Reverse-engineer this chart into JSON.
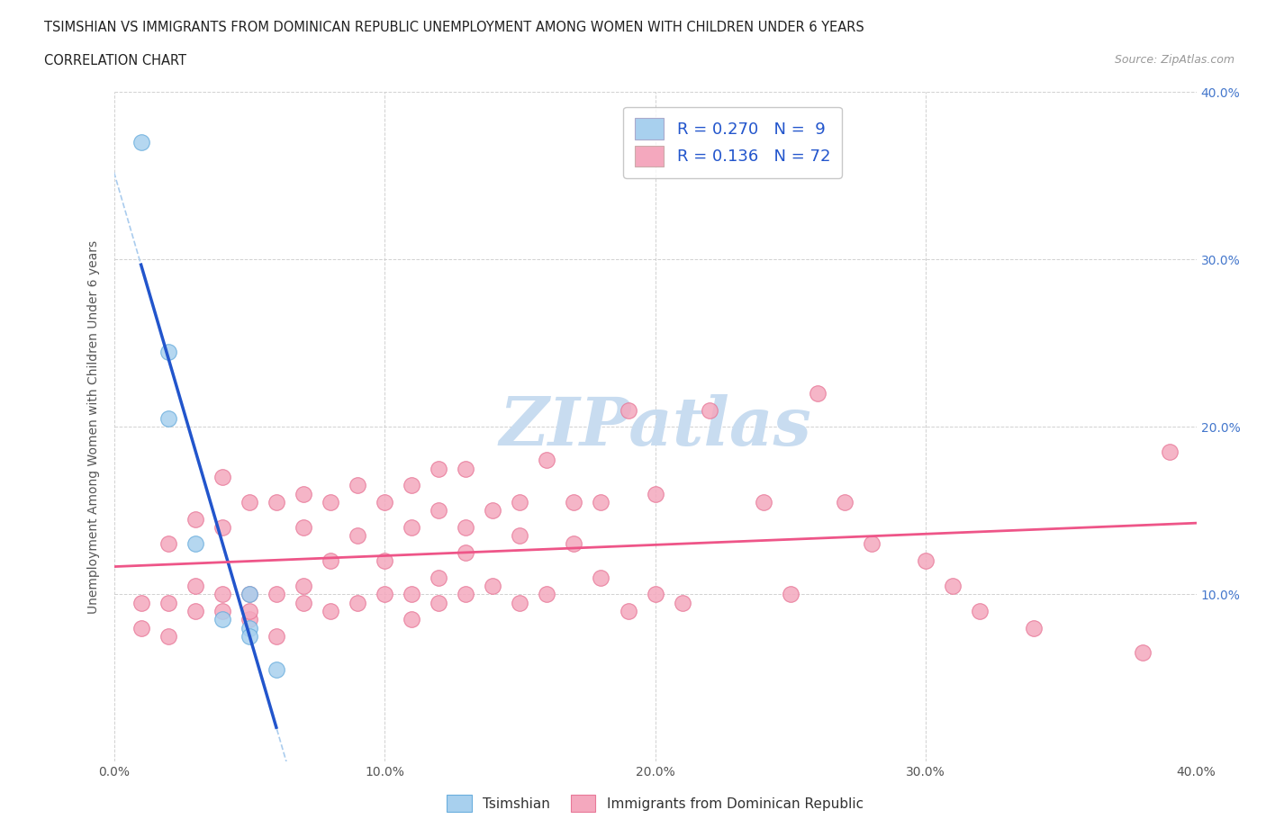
{
  "title_line1": "TSIMSHIAN VS IMMIGRANTS FROM DOMINICAN REPUBLIC UNEMPLOYMENT AMONG WOMEN WITH CHILDREN UNDER 6 YEARS",
  "title_line2": "CORRELATION CHART",
  "source": "Source: ZipAtlas.com",
  "ylabel": "Unemployment Among Women with Children Under 6 years",
  "xlim": [
    0.0,
    0.4
  ],
  "ylim": [
    0.0,
    0.4
  ],
  "xtick_vals": [
    0.0,
    0.1,
    0.2,
    0.3,
    0.4
  ],
  "ytick_vals": [
    0.1,
    0.2,
    0.3,
    0.4
  ],
  "tsimshian_color": "#A8D0EE",
  "dr_color": "#F4A8BE",
  "tsimshian_edge": "#6AAEDD",
  "dr_edge": "#E87898",
  "trend_tsimshian_color": "#2255CC",
  "trend_dr_color": "#EE5588",
  "trend_tsimshian_dashed_color": "#AACCEE",
  "background_color": "#FFFFFF",
  "grid_color": "#CCCCCC",
  "R_tsimshian": 0.27,
  "N_tsimshian": 9,
  "R_dr": 0.136,
  "N_dr": 72,
  "tsimshian_x": [
    0.01,
    0.02,
    0.02,
    0.03,
    0.04,
    0.05,
    0.05,
    0.05,
    0.06
  ],
  "tsimshian_y": [
    0.37,
    0.245,
    0.205,
    0.13,
    0.085,
    0.1,
    0.08,
    0.075,
    0.055
  ],
  "dr_x": [
    0.01,
    0.01,
    0.02,
    0.02,
    0.02,
    0.03,
    0.03,
    0.03,
    0.04,
    0.04,
    0.04,
    0.04,
    0.05,
    0.05,
    0.05,
    0.05,
    0.06,
    0.06,
    0.06,
    0.07,
    0.07,
    0.07,
    0.07,
    0.08,
    0.08,
    0.08,
    0.09,
    0.09,
    0.09,
    0.1,
    0.1,
    0.1,
    0.11,
    0.11,
    0.11,
    0.11,
    0.12,
    0.12,
    0.12,
    0.12,
    0.13,
    0.13,
    0.13,
    0.13,
    0.14,
    0.14,
    0.15,
    0.15,
    0.15,
    0.16,
    0.16,
    0.17,
    0.17,
    0.18,
    0.18,
    0.19,
    0.19,
    0.2,
    0.2,
    0.21,
    0.22,
    0.24,
    0.25,
    0.26,
    0.27,
    0.28,
    0.3,
    0.31,
    0.32,
    0.34,
    0.38,
    0.39
  ],
  "dr_y": [
    0.08,
    0.095,
    0.075,
    0.095,
    0.13,
    0.09,
    0.105,
    0.145,
    0.09,
    0.1,
    0.14,
    0.17,
    0.085,
    0.09,
    0.1,
    0.155,
    0.075,
    0.1,
    0.155,
    0.095,
    0.105,
    0.14,
    0.16,
    0.09,
    0.12,
    0.155,
    0.095,
    0.135,
    0.165,
    0.1,
    0.12,
    0.155,
    0.085,
    0.1,
    0.14,
    0.165,
    0.095,
    0.11,
    0.15,
    0.175,
    0.1,
    0.125,
    0.14,
    0.175,
    0.105,
    0.15,
    0.095,
    0.135,
    0.155,
    0.1,
    0.18,
    0.13,
    0.155,
    0.11,
    0.155,
    0.09,
    0.21,
    0.1,
    0.16,
    0.095,
    0.21,
    0.155,
    0.1,
    0.22,
    0.155,
    0.13,
    0.12,
    0.105,
    0.09,
    0.08,
    0.065,
    0.185
  ],
  "watermark_text": "ZIPatlas",
  "watermark_color": "#C8DCF0",
  "legend_tsimshian": "Tsimshian",
  "legend_dr": "Immigrants from Dominican Republic"
}
